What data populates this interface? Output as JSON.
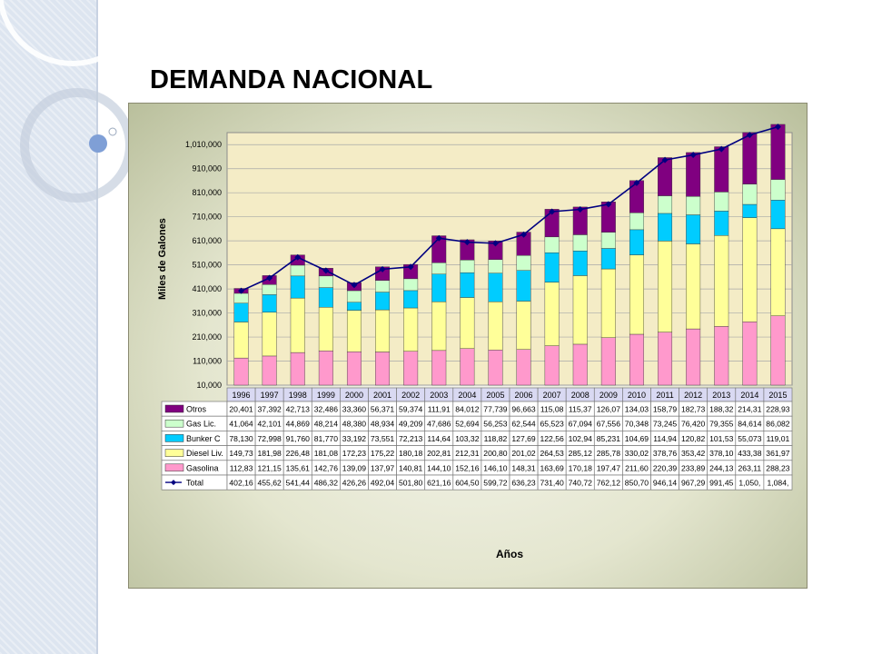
{
  "slide": {
    "title": "DEMANDA NACIONAL"
  },
  "chart_data": {
    "type": "bar",
    "stacked": true,
    "title": "",
    "xlabel": "Años",
    "ylabel": "Miles de Galones",
    "ylim": [
      10000,
      1060000
    ],
    "yticks": [
      "1,010,000",
      "910,000",
      "810,000",
      "710,000",
      "610,000",
      "510,000",
      "410,000",
      "310,000",
      "210,000",
      "110,000",
      "10,000"
    ],
    "categories": [
      "1996",
      "1997",
      "1998",
      "1999",
      "2000",
      "2001",
      "2002",
      "2003",
      "2004",
      "2005",
      "2006",
      "2007",
      "2008",
      "2009",
      "2010",
      "2011",
      "2012",
      "2013",
      "2014",
      "2015"
    ],
    "grid": true,
    "legend": "table-below",
    "series": [
      {
        "name": "Gasolina",
        "color": "#ff99cc",
        "values": [
          112830,
          121150,
          135610,
          142760,
          139090,
          137970,
          140810,
          144100,
          152160,
          146100,
          148310,
          163690,
          170180,
          197470,
          211600,
          220390,
          233890,
          244130,
          263110,
          288230
        ],
        "labels": [
          "112,83",
          "121,15",
          "135,61",
          "142,76",
          "139,09",
          "137,97",
          "140,81",
          "144,10",
          "152,16",
          "146,10",
          "148,31",
          "163,69",
          "170,18",
          "197,47",
          "211,60",
          "220,39",
          "233,89",
          "244,13",
          "263,11",
          "288,23"
        ]
      },
      {
        "name": "Diesel Liv.",
        "color": "#ffff99",
        "values": [
          149730,
          181980,
          226480,
          181080,
          172230,
          175220,
          180180,
          202810,
          212310,
          200800,
          201020,
          264530,
          285120,
          285780,
          330020,
          378760,
          353420,
          378100,
          433380,
          361970
        ],
        "labels": [
          "149,73",
          "181,98",
          "226,48",
          "181,08",
          "172,23",
          "175,22",
          "180,18",
          "202,81",
          "212,31",
          "200,80",
          "201,02",
          "264,53",
          "285,12",
          "285,78",
          "330,02",
          "378,76",
          "353,42",
          "378,10",
          "433,38",
          "361,97"
        ]
      },
      {
        "name": "Bunker C",
        "color": "#00ccff",
        "values": [
          78130,
          72998,
          91760,
          81770,
          33192,
          73551,
          72213,
          114640,
          103320,
          118820,
          127690,
          122560,
          102940,
          85231,
          104690,
          114940,
          120820,
          101530,
          55073,
          119010
        ],
        "labels": [
          "78,130",
          "72,998",
          "91,760",
          "81,770",
          "33,192",
          "73,551",
          "72,213",
          "114,64",
          "103,32",
          "118,82",
          "127,69",
          "122,56",
          "102,94",
          "85,231",
          "104,69",
          "114,94",
          "120,82",
          "101,53",
          "55,073",
          "119,01"
        ]
      },
      {
        "name": "Gas Lic.",
        "color": "#ccffcc",
        "values": [
          41064,
          42101,
          44869,
          48214,
          48380,
          48934,
          49209,
          47686,
          52694,
          56253,
          62544,
          65523,
          67094,
          67556,
          70348,
          73245,
          76420,
          79355,
          84614,
          86082
        ],
        "labels": [
          "41,064",
          "42,101",
          "44,869",
          "48,214",
          "48,380",
          "48,934",
          "49,209",
          "47,686",
          "52,694",
          "56,253",
          "62,544",
          "65,523",
          "67,094",
          "67,556",
          "70,348",
          "73,245",
          "76,420",
          "79,355",
          "84,614",
          "86,082"
        ]
      },
      {
        "name": "Otros",
        "color": "#800080",
        "values": [
          20401,
          37392,
          42713,
          32486,
          33360,
          56371,
          59374,
          111910,
          84012,
          77739,
          96663,
          115080,
          115370,
          126070,
          134030,
          158790,
          182730,
          188320,
          214310,
          228930
        ],
        "labels": [
          "20,401",
          "37,392",
          "42,713",
          "32,486",
          "33,360",
          "56,371",
          "59,374",
          "111,91",
          "84,012",
          "77,739",
          "96,663",
          "115,08",
          "115,37",
          "126,07",
          "134,03",
          "158,79",
          "182,73",
          "188,32",
          "214,31",
          "228,93"
        ]
      },
      {
        "name": "Total",
        "type": "line",
        "color": "#000080",
        "values": [
          402160,
          455620,
          541440,
          486320,
          426260,
          492040,
          501800,
          621160,
          604500,
          599720,
          636230,
          731400,
          740720,
          762120,
          850700,
          946140,
          967290,
          991450,
          1050000,
          1084000
        ],
        "labels": [
          "402,16",
          "455,62",
          "541,44",
          "486,32",
          "426,26",
          "492,04",
          "501,80",
          "621,16",
          "604,50",
          "599,72",
          "636,23",
          "731,40",
          "740,72",
          "762,12",
          "850,70",
          "946,14",
          "967,29",
          "991,45",
          "1,050,",
          "1,084,"
        ]
      }
    ],
    "table_row_order": [
      "Otros",
      "Gas Lic.",
      "Bunker C",
      "Diesel Liv.",
      "Gasolina",
      "Total"
    ]
  }
}
